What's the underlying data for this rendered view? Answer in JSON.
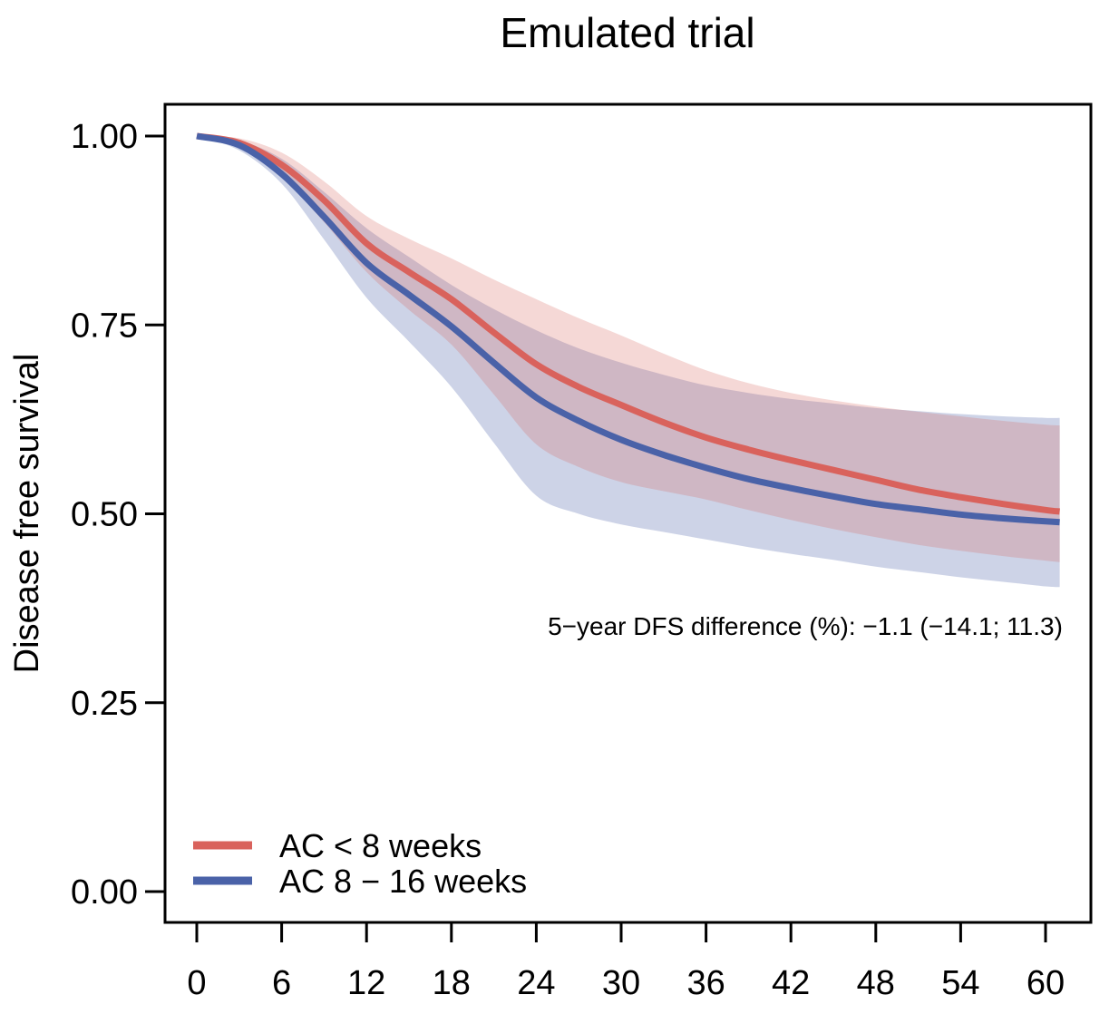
{
  "chart_data": {
    "type": "line",
    "title": "Emulated trial",
    "xlabel": "",
    "ylabel": "Disease free survival",
    "xlim": [
      0,
      61
    ],
    "ylim": [
      0.0,
      1.0
    ],
    "grid": false,
    "legend_position": "bottom-left",
    "annotation": "5−year DFS difference (%): −1.1 (−14.1; 11.3)",
    "x_ticks": [
      0,
      6,
      12,
      18,
      24,
      30,
      36,
      42,
      48,
      54,
      60
    ],
    "y_ticks": [
      "0.00",
      "0.25",
      "0.50",
      "0.75",
      "1.00"
    ],
    "x": [
      0,
      3,
      6,
      9,
      12,
      15,
      18,
      21,
      24,
      27,
      30,
      33,
      36,
      39,
      42,
      45,
      48,
      51,
      54,
      57,
      60,
      61
    ],
    "series": [
      {
        "name": "AC < 8 weeks",
        "color": "#D9625C",
        "band_color": "rgba(217,98,92,0.25)",
        "values": [
          1.0,
          0.991,
          0.962,
          0.915,
          0.858,
          0.82,
          0.784,
          0.74,
          0.698,
          0.668,
          0.644,
          0.621,
          0.601,
          0.585,
          0.571,
          0.558,
          0.545,
          0.532,
          0.522,
          0.513,
          0.505,
          0.503
        ],
        "ci_upper": [
          1.0,
          0.997,
          0.978,
          0.94,
          0.894,
          0.864,
          0.838,
          0.81,
          0.784,
          0.759,
          0.736,
          0.712,
          0.69,
          0.673,
          0.66,
          0.65,
          0.642,
          0.635,
          0.629,
          0.623,
          0.618,
          0.617
        ],
        "ci_lower": [
          1.0,
          0.985,
          0.946,
          0.886,
          0.82,
          0.77,
          0.724,
          0.658,
          0.592,
          0.562,
          0.542,
          0.53,
          0.519,
          0.505,
          0.492,
          0.48,
          0.469,
          0.459,
          0.451,
          0.444,
          0.438,
          0.436
        ]
      },
      {
        "name": "AC 8 − 16 weeks",
        "color": "#4A62A8",
        "band_color": "rgba(74,98,169,0.28)",
        "values": [
          1.0,
          0.988,
          0.95,
          0.893,
          0.832,
          0.79,
          0.748,
          0.7,
          0.654,
          0.623,
          0.598,
          0.578,
          0.561,
          0.546,
          0.534,
          0.523,
          0.513,
          0.506,
          0.499,
          0.494,
          0.49,
          0.489
        ],
        "ci_upper": [
          1.0,
          0.994,
          0.97,
          0.926,
          0.878,
          0.84,
          0.803,
          0.771,
          0.743,
          0.719,
          0.7,
          0.684,
          0.67,
          0.66,
          0.652,
          0.646,
          0.64,
          0.636,
          0.632,
          0.629,
          0.627,
          0.627
        ],
        "ci_lower": [
          1.0,
          0.981,
          0.937,
          0.863,
          0.786,
          0.728,
          0.668,
          0.594,
          0.524,
          0.5,
          0.486,
          0.476,
          0.466,
          0.456,
          0.447,
          0.439,
          0.43,
          0.423,
          0.416,
          0.41,
          0.404,
          0.403
        ]
      }
    ]
  }
}
